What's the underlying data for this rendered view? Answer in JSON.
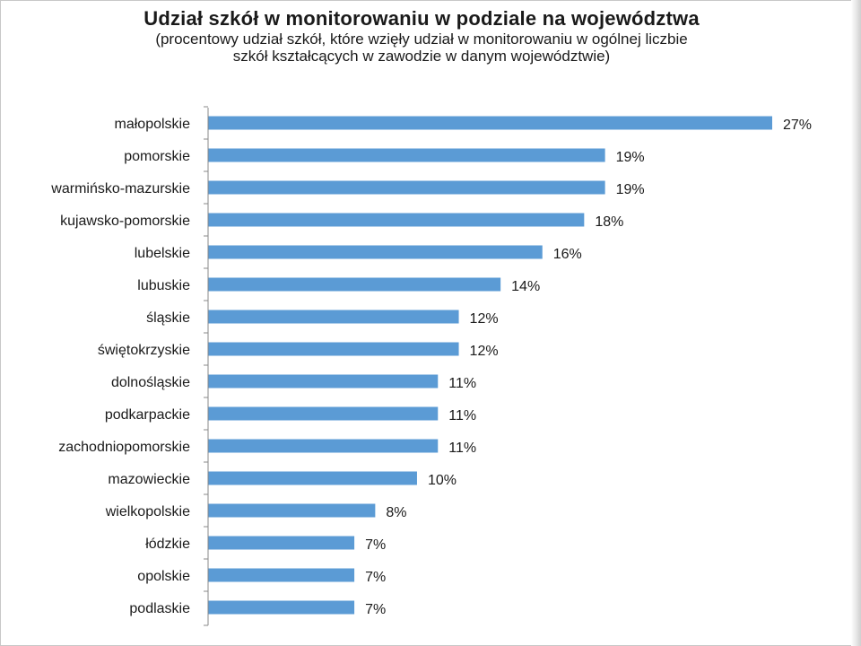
{
  "chart_data": {
    "type": "bar",
    "orientation": "horizontal",
    "title": "Udział szkół w monitorowaniu  w podziale na województwa",
    "subtitle_lines": [
      "(procentowy udział szkół, które wzięły udział w monitorowaniu w ogólnej liczbie",
      "szkół kształcących w zawodzie  w danym województwie)"
    ],
    "categories": [
      "małopolskie",
      "pomorskie",
      "warmińsko-mazurskie",
      "kujawsko-pomorskie",
      "lubelskie",
      "lubuskie",
      "śląskie",
      "świętokrzyskie",
      "dolnośląskie",
      "podkarpackie",
      "zachodniopomorskie",
      "mazowieckie",
      "wielkopolskie",
      "łódzkie",
      "opolskie",
      "podlaskie"
    ],
    "values": [
      27,
      19,
      19,
      18,
      16,
      14,
      12,
      12,
      11,
      11,
      11,
      10,
      8,
      7,
      7,
      7
    ],
    "value_labels": [
      "27%",
      "19%",
      "19%",
      "18%",
      "16%",
      "14%",
      "12%",
      "12%",
      "11%",
      "11%",
      "11%",
      "10%",
      "8%",
      "7%",
      "7%",
      "7%"
    ],
    "unit": "%",
    "xlim": [
      0,
      27
    ],
    "grid": false,
    "legend": "none",
    "bar_color": "#5b9bd5",
    "axis_color": "#888888"
  }
}
